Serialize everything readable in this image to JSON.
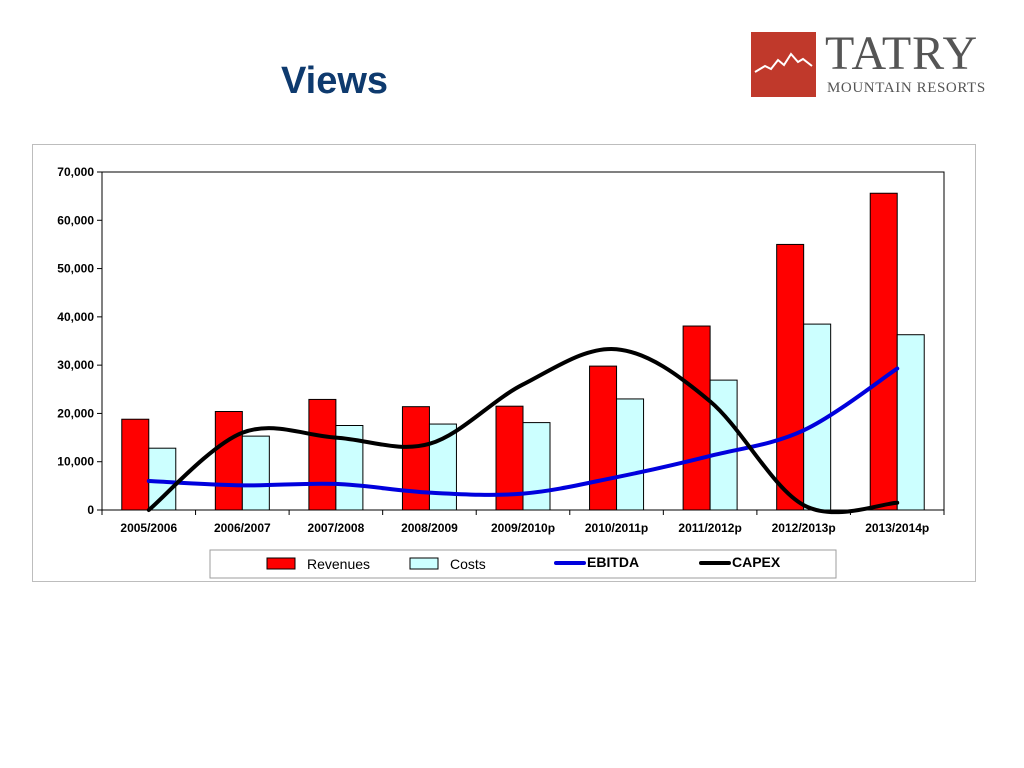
{
  "slide": {
    "title": "Views"
  },
  "logo": {
    "name": "TATRY",
    "sub": "MOUNTAIN RESORTS",
    "color": "#c0392b"
  },
  "chart_data": {
    "type": "bar",
    "categories": [
      "2005/2006",
      "2006/2007",
      "2007/2008",
      "2008/2009",
      "2009/2010p",
      "2010/2011p",
      "2011/2012p",
      "2012/2013p",
      "2013/2014p"
    ],
    "series": [
      {
        "name": "Revenues",
        "type": "bar",
        "color": "#ff0000",
        "values": [
          18800,
          20400,
          22900,
          21400,
          21500,
          29800,
          38100,
          55000,
          65600
        ]
      },
      {
        "name": "Costs",
        "type": "bar",
        "color": "#ccffff",
        "values": [
          12800,
          15300,
          17500,
          17800,
          18100,
          23000,
          26900,
          38500,
          36300
        ]
      },
      {
        "name": "EBITDA",
        "type": "line",
        "color": "#0000dd",
        "values": [
          6000,
          5100,
          5400,
          3600,
          3400,
          6800,
          11200,
          16500,
          29300
        ]
      },
      {
        "name": "CAPEX",
        "type": "line",
        "color": "#000000",
        "values": [
          0,
          16000,
          15000,
          13700,
          26000,
          33300,
          22500,
          1000,
          1500
        ]
      }
    ],
    "ylim": [
      0,
      70000
    ],
    "yticks": [
      "0",
      "10,000",
      "20,000",
      "30,000",
      "40,000",
      "50,000",
      "60,000",
      "70,000"
    ],
    "grid": false,
    "legend": "bottom"
  }
}
